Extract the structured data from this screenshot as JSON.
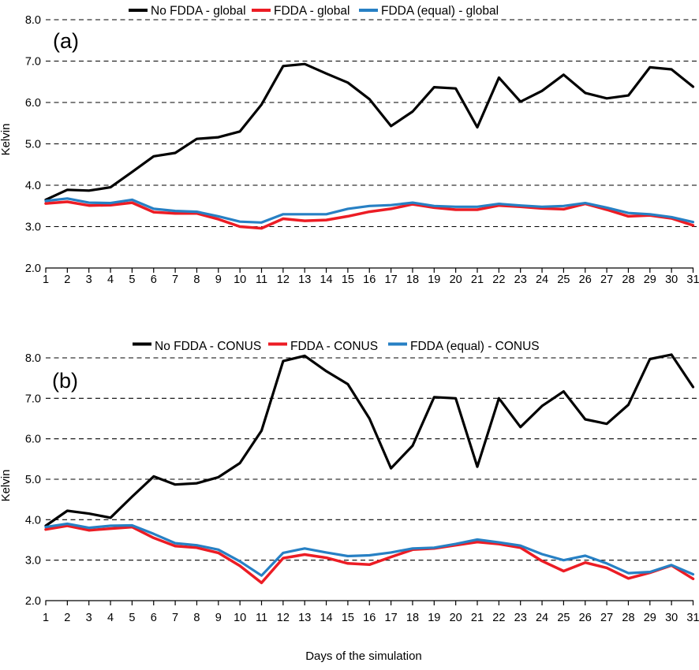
{
  "figure": {
    "xlabel": "Days of the simulation",
    "ylabel": "Kelvin"
  },
  "chart_data": [
    {
      "type": "line",
      "panel_label": "(a)",
      "ylabel": "Kelvin",
      "ylim": [
        2.0,
        8.0
      ],
      "grid": "horizontal-dashed",
      "legend_position": "top",
      "ytick_labels": [
        "2.0",
        "3.0",
        "4.0",
        "5.0",
        "6.0",
        "7.0",
        "8.0"
      ],
      "categories": [
        1,
        2,
        3,
        4,
        5,
        6,
        7,
        8,
        9,
        10,
        11,
        12,
        13,
        14,
        15,
        16,
        17,
        18,
        19,
        20,
        21,
        22,
        23,
        24,
        25,
        26,
        27,
        28,
        29,
        30,
        31
      ],
      "series": [
        {
          "name": "No FDDA - global",
          "color": "#000000",
          "values": [
            3.65,
            3.89,
            3.87,
            3.95,
            4.32,
            4.7,
            4.78,
            5.12,
            5.16,
            5.3,
            5.95,
            6.88,
            6.93,
            6.7,
            6.48,
            6.08,
            5.43,
            5.78,
            6.37,
            6.34,
            5.4,
            6.6,
            6.02,
            6.28,
            6.67,
            6.23,
            6.1,
            6.17,
            6.85,
            6.8,
            6.38
          ]
        },
        {
          "name": "FDDA - global",
          "color": "#EC1C24",
          "values": [
            3.56,
            3.6,
            3.51,
            3.52,
            3.58,
            3.35,
            3.32,
            3.32,
            3.18,
            3.0,
            2.96,
            3.19,
            3.14,
            3.16,
            3.25,
            3.36,
            3.43,
            3.54,
            3.46,
            3.41,
            3.41,
            3.51,
            3.48,
            3.44,
            3.42,
            3.55,
            3.41,
            3.25,
            3.27,
            3.2,
            3.03
          ]
        },
        {
          "name": "FDDA (equal) - global",
          "color": "#2780C4",
          "values": [
            3.62,
            3.68,
            3.58,
            3.57,
            3.65,
            3.43,
            3.38,
            3.36,
            3.25,
            3.12,
            3.1,
            3.3,
            3.3,
            3.3,
            3.43,
            3.5,
            3.52,
            3.58,
            3.5,
            3.48,
            3.48,
            3.55,
            3.51,
            3.48,
            3.5,
            3.57,
            3.46,
            3.33,
            3.3,
            3.23,
            3.11
          ]
        }
      ]
    },
    {
      "type": "line",
      "panel_label": "(b)",
      "ylabel": "Kelvin",
      "xlabel": "Days of the simulation",
      "ylim": [
        2.0,
        8.0
      ],
      "grid": "horizontal-dashed",
      "legend_position": "top",
      "ytick_labels": [
        "2.0",
        "3.0",
        "4.0",
        "5.0",
        "6.0",
        "7.0",
        "8.0"
      ],
      "categories": [
        1,
        2,
        3,
        4,
        5,
        6,
        7,
        8,
        9,
        10,
        11,
        12,
        13,
        14,
        15,
        16,
        17,
        18,
        19,
        20,
        21,
        22,
        23,
        24,
        25,
        26,
        27,
        28,
        29,
        30,
        31
      ],
      "series": [
        {
          "name": "No FDDA - CONUS",
          "color": "#000000",
          "values": [
            3.85,
            4.22,
            4.15,
            4.05,
            4.57,
            5.07,
            4.87,
            4.9,
            5.05,
            5.4,
            6.2,
            7.92,
            8.05,
            7.67,
            7.35,
            6.5,
            5.27,
            5.83,
            7.03,
            7.0,
            5.31,
            7.0,
            6.29,
            6.81,
            7.17,
            6.48,
            6.37,
            6.84,
            7.97,
            8.08,
            7.28
          ]
        },
        {
          "name": "FDDA - CONUS",
          "color": "#EC1C24",
          "values": [
            3.76,
            3.85,
            3.74,
            3.78,
            3.82,
            3.55,
            3.35,
            3.31,
            3.18,
            2.86,
            2.44,
            3.05,
            3.14,
            3.06,
            2.92,
            2.89,
            3.08,
            3.26,
            3.29,
            3.37,
            3.45,
            3.4,
            3.31,
            2.98,
            2.73,
            2.94,
            2.81,
            2.55,
            2.69,
            2.87,
            2.54
          ]
        },
        {
          "name": "FDDA (equal) - CONUS",
          "color": "#2780C4",
          "values": [
            3.82,
            3.9,
            3.8,
            3.85,
            3.86,
            3.65,
            3.42,
            3.37,
            3.26,
            2.97,
            2.62,
            3.18,
            3.29,
            3.19,
            3.1,
            3.12,
            3.19,
            3.29,
            3.31,
            3.4,
            3.51,
            3.44,
            3.36,
            3.15,
            3.0,
            3.11,
            2.92,
            2.68,
            2.71,
            2.88,
            2.65
          ]
        }
      ]
    }
  ]
}
